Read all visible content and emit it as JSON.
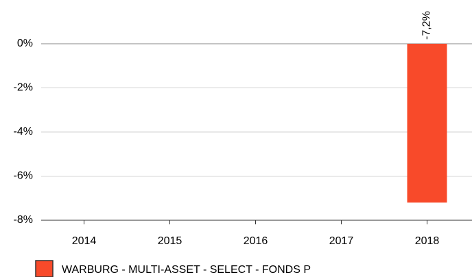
{
  "chart_data": {
    "type": "bar",
    "categories": [
      "2014",
      "2015",
      "2016",
      "2017",
      "2018"
    ],
    "series": [
      {
        "name": "WARBURG - MULTI-ASSET - SELECT - FONDS P",
        "color": "#f84a2a",
        "values": [
          null,
          null,
          null,
          null,
          -7.2
        ],
        "value_labels": [
          null,
          null,
          null,
          null,
          "-7,2%"
        ]
      }
    ],
    "ylim": [
      -8,
      0
    ],
    "yticks": [
      {
        "value": 0,
        "label": "0%"
      },
      {
        "value": -2,
        "label": "-2%"
      },
      {
        "value": -4,
        "label": "-4%"
      },
      {
        "value": -6,
        "label": "-6%"
      },
      {
        "value": -8,
        "label": "-8%"
      }
    ],
    "grid": true,
    "legend": "bottom-left"
  }
}
